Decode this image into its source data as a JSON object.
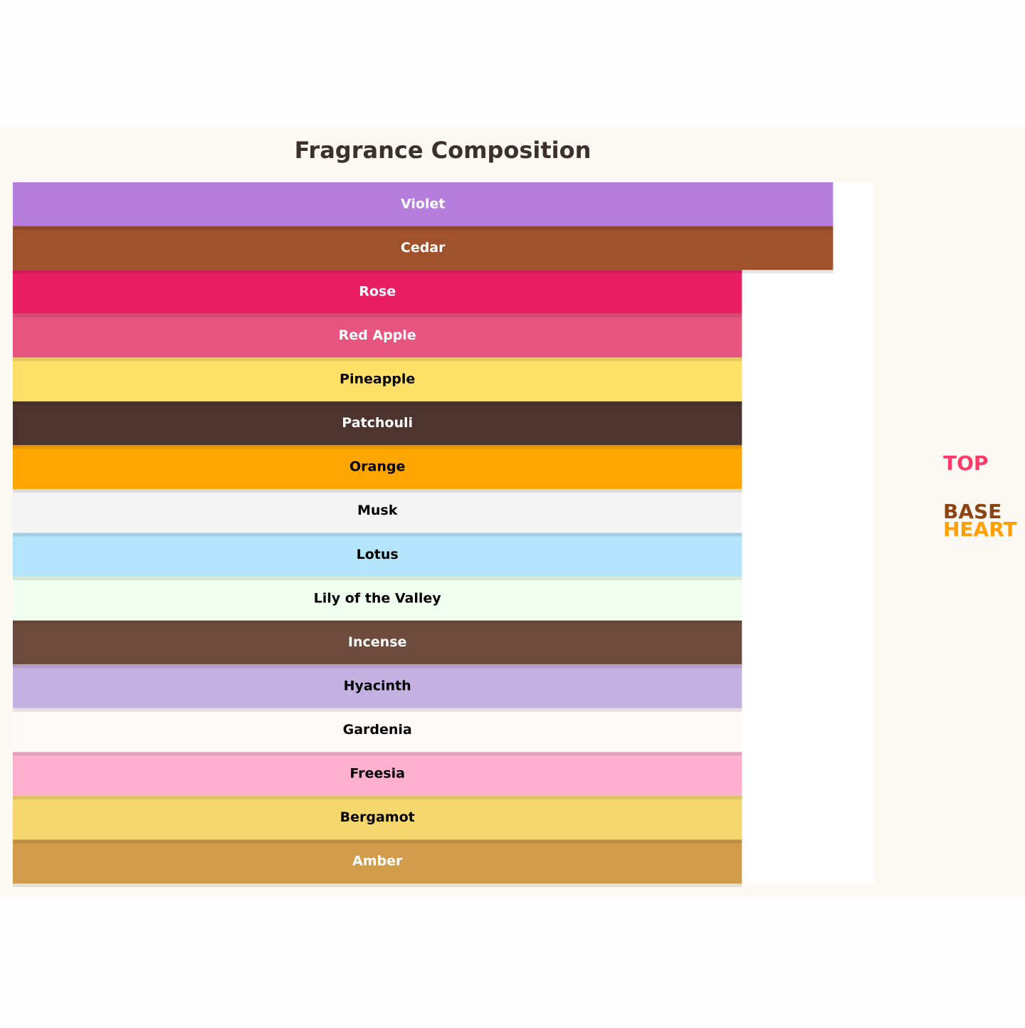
{
  "chart_data": {
    "type": "bar",
    "orientation": "horizontal",
    "title": "Fragrance Composition",
    "categories": [
      "Violet",
      "Cedar",
      "Rose",
      "Red Apple",
      "Pineapple",
      "Patchouli",
      "Orange",
      "Musk",
      "Lotus",
      "Lily of the Valley",
      "Incense",
      "Hyacinth",
      "Gardenia",
      "Freesia",
      "Bergamot",
      "Amber"
    ],
    "values": [
      9,
      9,
      8,
      8,
      8,
      8,
      8,
      8,
      8,
      8,
      8,
      8,
      8,
      8,
      8,
      8
    ],
    "colors": [
      "#b57edc",
      "#a0522d",
      "#e91e63",
      "#e75480",
      "#fedf68",
      "#4e342e",
      "#ffa500",
      "#f4f4f4",
      "#b3e5fc",
      "#f0fff0",
      "#6d4c3d",
      "#c3b1e1",
      "#fdfaf7",
      "#ffb0cf",
      "#f5d76e",
      "#d19c4c"
    ],
    "xlim": [
      0,
      9.45
    ],
    "legend": [
      {
        "label": "TOP",
        "color": "#ff3b6b"
      },
      {
        "label": "BASE",
        "color": "#8b4513"
      },
      {
        "label": "HEART",
        "color": "#ff9f00"
      }
    ]
  }
}
